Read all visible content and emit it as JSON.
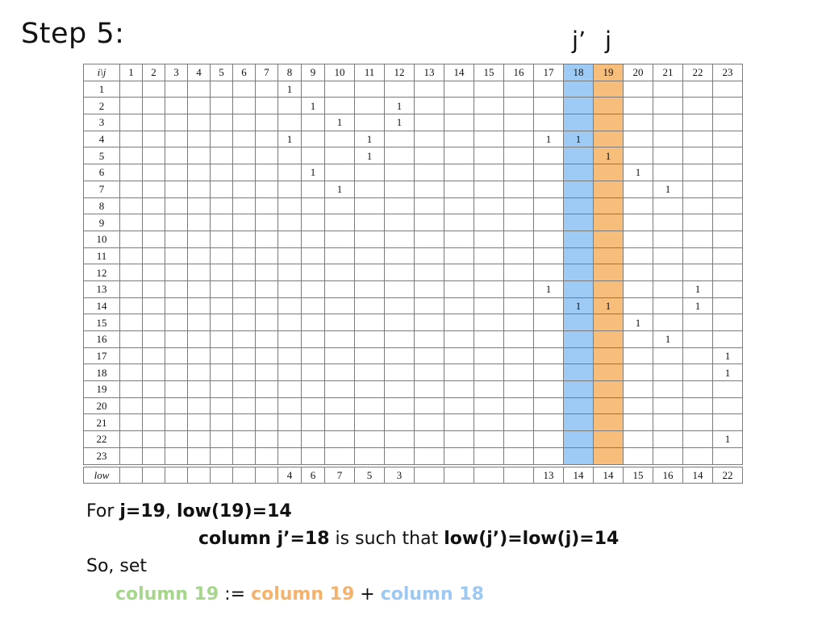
{
  "title": "Step 5:",
  "markers": {
    "j_prime": "j’",
    "j": "j"
  },
  "header_corner": "i\\j",
  "columns": [
    "1",
    "2",
    "3",
    "4",
    "5",
    "6",
    "7",
    "8",
    "9",
    "10",
    "11",
    "12",
    "13",
    "14",
    "15",
    "16",
    "17",
    "18",
    "19",
    "20",
    "21",
    "22",
    "23"
  ],
  "highlight": {
    "blue_col": 18,
    "orange_col": 19,
    "blue": "#9ecbf5",
    "orange": "#f7bd7a"
  },
  "entries": [
    [
      1,
      8
    ],
    [
      2,
      9
    ],
    [
      2,
      12
    ],
    [
      3,
      10
    ],
    [
      3,
      12
    ],
    [
      4,
      8
    ],
    [
      4,
      11
    ],
    [
      4,
      17
    ],
    [
      4,
      18
    ],
    [
      5,
      11
    ],
    [
      5,
      19
    ],
    [
      6,
      9
    ],
    [
      6,
      20
    ],
    [
      7,
      10
    ],
    [
      7,
      21
    ],
    [
      13,
      17
    ],
    [
      13,
      22
    ],
    [
      14,
      18
    ],
    [
      14,
      19
    ],
    [
      14,
      22
    ],
    [
      15,
      20
    ],
    [
      16,
      21
    ],
    [
      17,
      23
    ],
    [
      18,
      23
    ],
    [
      22,
      23
    ]
  ],
  "low_label": "low",
  "low_values": [
    "",
    "",
    "",
    "",
    "",
    "",
    "",
    "4",
    "6",
    "7",
    "5",
    "3",
    "",
    "",
    "",
    "",
    "13",
    "14",
    "14",
    "15",
    "16",
    "14",
    "22"
  ],
  "text": {
    "line1_a": "For ",
    "line1_b": "j=19",
    "line1_c": ", ",
    "line1_d": "low(19)=14",
    "line2_a": "column j’=18",
    "line2_b": " is such that ",
    "line2_c": "low(j’)=low(j)=14",
    "line3": "So, set",
    "line4_a": "column 19",
    "line4_b": " := ",
    "line4_c": "column 19",
    "line4_d": " + ",
    "line4_e": "column 18"
  },
  "colors": {
    "green": "#a6d58c",
    "orange_text": "#f5b26d",
    "blue_text": "#9cc8f3"
  }
}
